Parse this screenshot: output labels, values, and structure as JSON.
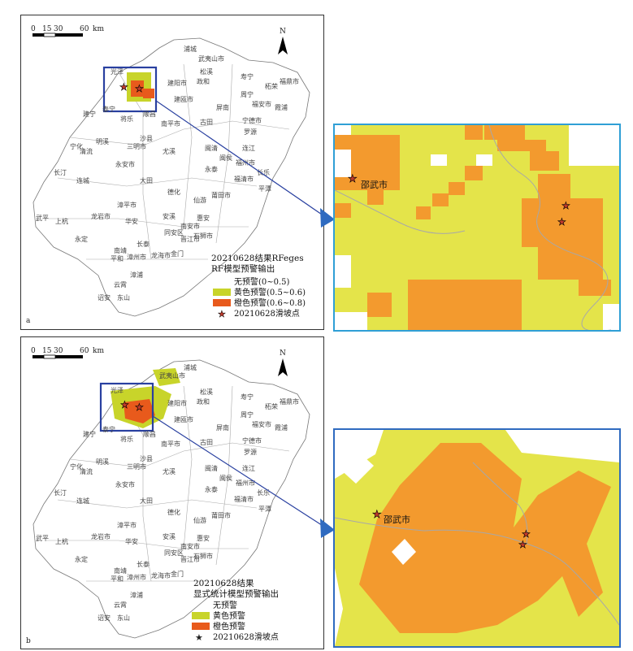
{
  "panel_a": {
    "letter": "a",
    "scale": {
      "ticks": [
        "0",
        "15",
        "30",
        "60"
      ],
      "unit": "km"
    },
    "north": "N",
    "title_lines": [
      "20210628结果RFeges",
      "RF模型预警输出"
    ],
    "legend": [
      {
        "label": "无预警(0~0.5)",
        "color": "#ffffff"
      },
      {
        "label": "黄色预警(0.5~0.6)",
        "color": "#c8d42a"
      },
      {
        "label": "橙色预警(0.6~0.8)",
        "color": "#e85a1c"
      },
      {
        "label": "20210628滑坡点",
        "symbol": "star"
      }
    ]
  },
  "panel_b": {
    "letter": "b",
    "scale": {
      "ticks": [
        "0",
        "15",
        "30",
        "60"
      ],
      "unit": "km"
    },
    "north": "N",
    "title_lines": [
      "20210628结果",
      "显式统计模型预警输出"
    ],
    "legend": [
      {
        "label": "无预警",
        "color": "#ffffff"
      },
      {
        "label": "黄色预警",
        "color": "#c8d42a"
      },
      {
        "label": "橙色预警",
        "color": "#e85a1c"
      },
      {
        "label": "20210628滑坡点",
        "symbol": "star"
      }
    ]
  },
  "zoom_labels": {
    "city": "邵武市"
  },
  "colors": {
    "yellow": "#e4e44a",
    "orange": "#f39a2e",
    "box": "#2940a0",
    "star": "#c0392b"
  },
  "cities": [
    "浦城",
    "武夷山市",
    "光泽",
    "邵武",
    "建阳市",
    "松溪",
    "政和",
    "寿宁",
    "柘荣",
    "福鼎市",
    "周宁",
    "福安市",
    "霞浦",
    "屏南",
    "建瓯市",
    "泰宁",
    "建宁",
    "将乐",
    "顺昌",
    "南平市",
    "古田",
    "宁德市",
    "罗源",
    "连江",
    "闽清",
    "宁化",
    "明溪",
    "清流",
    "沙县",
    "三明市",
    "尤溪",
    "闽侯",
    "福州市",
    "长乐",
    "长汀",
    "连城",
    "永安市",
    "大田",
    "永泰",
    "福清市",
    "平潭",
    "德化",
    "仙游",
    "莆田市",
    "武平",
    "上杭",
    "龙岩市",
    "漳平市",
    "华安",
    "安溪",
    "南安市",
    "惠安",
    "永定",
    "同安区",
    "晋江市",
    "石狮市",
    "南靖",
    "长泰",
    "平和",
    "漳州市",
    "龙海市",
    "金门",
    "漳浦",
    "云霄",
    "诏安",
    "东山"
  ]
}
